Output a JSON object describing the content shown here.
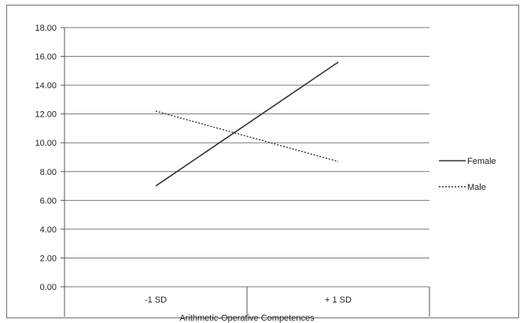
{
  "chart_data": {
    "type": "line",
    "categories": [
      "-1 SD",
      "+ 1 SD"
    ],
    "xlabel": "Arithmetic-Operative Competences",
    "ylabel": "",
    "ylim": [
      0,
      18
    ],
    "yticks": [
      "0.00",
      "2.00",
      "4.00",
      "6.00",
      "8.00",
      "10.00",
      "12.00",
      "14.00",
      "16.00",
      "18.00"
    ],
    "grid": true,
    "legend_position": "right",
    "series": [
      {
        "name": "Female",
        "values": [
          7.0,
          15.6
        ],
        "style": "solid",
        "color": "#333333"
      },
      {
        "name": "Male",
        "values": [
          12.2,
          8.7
        ],
        "style": "dotted",
        "color": "#333333"
      }
    ]
  }
}
